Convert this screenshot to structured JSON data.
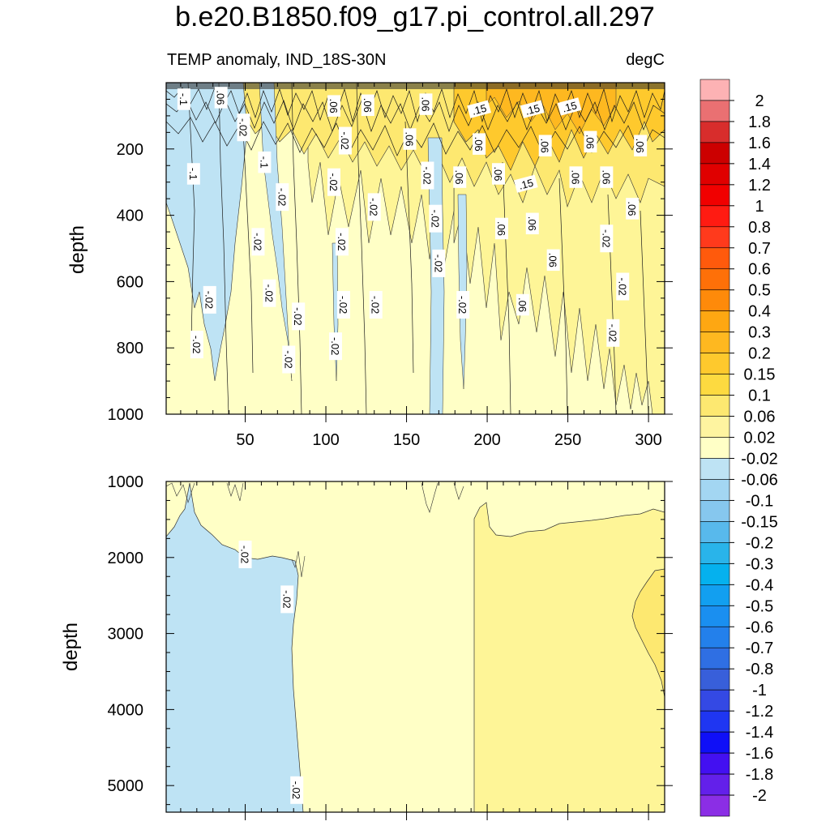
{
  "title": "b.e20.B1850.f09_g17.pi_control.all.297",
  "subtitle_left": "TEMP anomaly, IND_18S-30N",
  "subtitle_right": "degC",
  "colors": {
    "bg_light_yellow": "#ffffc6",
    "yellow": "#fef597",
    "yellow2": "#fde76b",
    "light_blue": "#bee3f4",
    "orange": "#fbb023",
    "dark_lines": "#222222"
  },
  "chart_data": [
    {
      "type": "heatmap",
      "panel": "upper",
      "ylabel": "depth",
      "xlabel": "",
      "xlim": [
        1,
        310
      ],
      "ylim": [
        1000,
        0
      ],
      "x_ticks": [
        "50",
        "100",
        "150",
        "200",
        "250",
        "300"
      ],
      "y_ticks": [
        "200",
        "400",
        "600",
        "800",
        "1000"
      ],
      "contour_labels": [
        {
          "text": "-.1",
          "x": 12,
          "y": 50
        },
        {
          "text": ".06",
          "x": 35,
          "y": 45
        },
        {
          "text": ".06",
          "x": 105,
          "y": 70
        },
        {
          "text": ".06",
          "x": 126,
          "y": 68
        },
        {
          "text": ".06",
          "x": 162,
          "y": 65
        },
        {
          "text": ".15",
          "x": 195,
          "y": 80
        },
        {
          "text": ".15",
          "x": 228,
          "y": 80
        },
        {
          "text": ".15",
          "x": 251,
          "y": 72
        },
        {
          "text": "-.02",
          "x": 49,
          "y": 135
        },
        {
          "text": "-.02",
          "x": 112,
          "y": 175
        },
        {
          "text": ".06",
          "x": 152,
          "y": 170
        },
        {
          "text": ".06",
          "x": 195,
          "y": 185
        },
        {
          "text": ".06",
          "x": 236,
          "y": 190
        },
        {
          "text": ".06",
          "x": 264,
          "y": 178
        },
        {
          "text": ".06",
          "x": 295,
          "y": 190
        },
        {
          "text": "-.1",
          "x": 18,
          "y": 275
        },
        {
          "text": "-.1",
          "x": 62,
          "y": 240
        },
        {
          "text": "-.02",
          "x": 105,
          "y": 300
        },
        {
          "text": "-.02",
          "x": 163,
          "y": 280
        },
        {
          "text": ".06",
          "x": 183,
          "y": 285
        },
        {
          "text": ".06",
          "x": 207,
          "y": 275
        },
        {
          "text": ".15",
          "x": 224,
          "y": 305
        },
        {
          "text": ".06",
          "x": 255,
          "y": 285
        },
        {
          "text": ".06",
          "x": 274,
          "y": 285
        },
        {
          "text": "-.02",
          "x": 73,
          "y": 345
        },
        {
          "text": "-.02",
          "x": 130,
          "y": 375
        },
        {
          "text": "-.02",
          "x": 168,
          "y": 410
        },
        {
          "text": ".06",
          "x": 290,
          "y": 380
        },
        {
          "text": ".06",
          "x": 209,
          "y": 440
        },
        {
          "text": ".06",
          "x": 228,
          "y": 425
        },
        {
          "text": "-.02",
          "x": 58,
          "y": 480
        },
        {
          "text": "-.02",
          "x": 110,
          "y": 480
        },
        {
          "text": "-.02",
          "x": 274,
          "y": 470
        },
        {
          "text": ".06",
          "x": 241,
          "y": 535
        },
        {
          "text": "-.02",
          "x": 170,
          "y": 545
        },
        {
          "text": "-.02",
          "x": 65,
          "y": 635
        },
        {
          "text": "-.02",
          "x": 28,
          "y": 655
        },
        {
          "text": "-.02",
          "x": 284,
          "y": 615
        },
        {
          "text": "-.02",
          "x": 83,
          "y": 705
        },
        {
          "text": "-.02",
          "x": 111,
          "y": 670
        },
        {
          "text": "-.02",
          "x": 131,
          "y": 670
        },
        {
          "text": "-.02",
          "x": 185,
          "y": 670
        },
        {
          "text": ".06",
          "x": 222,
          "y": 670
        },
        {
          "text": "-.02",
          "x": 20,
          "y": 790
        },
        {
          "text": "-.02",
          "x": 278,
          "y": 755
        },
        {
          "text": "-.02",
          "x": 106,
          "y": 795
        },
        {
          "text": "-.02",
          "x": 77,
          "y": 835
        }
      ]
    },
    {
      "type": "heatmap",
      "panel": "lower",
      "ylabel": "depth",
      "xlabel": "",
      "xlim": [
        1,
        310
      ],
      "ylim": [
        5350,
        1000
      ],
      "y_ticks": [
        "1000",
        "2000",
        "3000",
        "4000",
        "5000"
      ],
      "contour_labels": [
        {
          "text": "-.02",
          "x": 50,
          "y": 1960
        },
        {
          "text": "-.02",
          "x": 76,
          "y": 2550
        },
        {
          "text": "-.02",
          "x": 82,
          "y": 5060
        }
      ]
    }
  ],
  "colorbar": {
    "labels": [
      "2",
      "1.8",
      "1.6",
      "1.4",
      "1.2",
      "1",
      "0.8",
      "0.7",
      "0.6",
      "0.5",
      "0.4",
      "0.3",
      "0.2",
      "0.15",
      "0.1",
      "0.06",
      "0.02",
      "-0.02",
      "-0.06",
      "-0.1",
      "-0.15",
      "-0.2",
      "-0.3",
      "-0.4",
      "-0.5",
      "-0.6",
      "-0.7",
      "-0.8",
      "-1",
      "-1.2",
      "-1.4",
      "-1.6",
      "-1.8",
      "-2"
    ],
    "colors": [
      "#fdb2b4",
      "#ea7072",
      "#d82d2c",
      "#cc0000",
      "#e00000",
      "#f10000",
      "#ff1b12",
      "#ff3a1c",
      "#ff5a0c",
      "#fe7008",
      "#fe8a0a",
      "#fea712",
      "#feb820",
      "#fec92d",
      "#fdda40",
      "#fde870",
      "#fef4a0",
      "#ffffc6",
      "#bee3f4",
      "#a3d6f2",
      "#86c7ee",
      "#58b9ec",
      "#29b4ea",
      "#05b1ee",
      "#129ff0",
      "#1a8ff0",
      "#2380eb",
      "#2f6fe3",
      "#385fda",
      "#3449e4",
      "#1f36f2",
      "#0f0ff7",
      "#4310f1",
      "#6320ea",
      "#8b2ee5"
    ]
  }
}
